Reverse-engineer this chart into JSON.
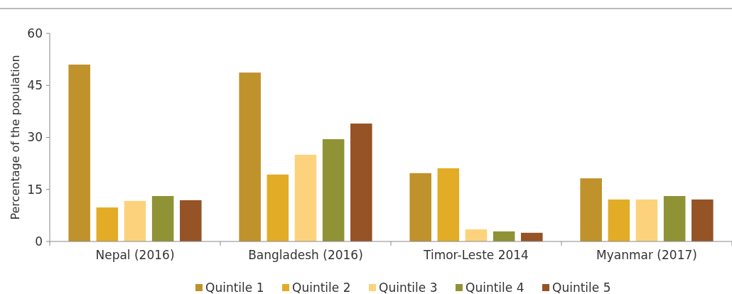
{
  "chart_data": {
    "type": "bar",
    "ylabel": "Percentage of the population",
    "categories": [
      "Nepal (2016)",
      "Bangladesh (2016)",
      "Timor-Leste 2014",
      "Myanmar (2017)"
    ],
    "ylim": [
      0,
      60
    ],
    "yticks": [
      0,
      15,
      30,
      45,
      60
    ],
    "grid": false,
    "legend": "bottom",
    "series": [
      {
        "name": "Quintile 1",
        "color": "#c0922b",
        "values": [
          51.0,
          48.7,
          19.7,
          18.2
        ]
      },
      {
        "name": "Quintile 2",
        "color": "#e2ac27",
        "values": [
          9.8,
          19.3,
          21.1,
          12.1
        ]
      },
      {
        "name": "Quintile 3",
        "color": "#fcd37c",
        "values": [
          11.7,
          25.0,
          3.5,
          12.1
        ]
      },
      {
        "name": "Quintile 4",
        "color": "#8f9336",
        "values": [
          13.1,
          29.5,
          2.9,
          13.1
        ]
      },
      {
        "name": "Quintile 5",
        "color": "#955326",
        "values": [
          11.9,
          34.0,
          2.5,
          12.1
        ]
      }
    ]
  }
}
